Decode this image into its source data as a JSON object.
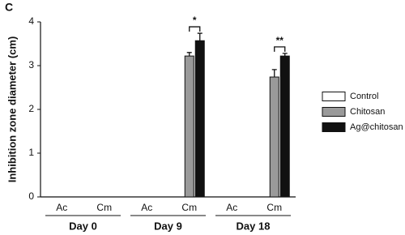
{
  "chart_data": {
    "type": "bar",
    "panel_label": "C",
    "y_label": "Inhibition zone diameter (cm)",
    "categories": [
      "Ac",
      "Cm",
      "Ac",
      "Cm",
      "Ac",
      "Cm"
    ],
    "groups": [
      "Day 0",
      "Day 9",
      "Day 18"
    ],
    "series": [
      {
        "name": "Control",
        "color": "#ffffff",
        "values": [
          null,
          null,
          null,
          null,
          null,
          null
        ],
        "errors": [
          null,
          null,
          null,
          null,
          null,
          null
        ]
      },
      {
        "name": "Chitosan",
        "color": "#9a9a9a",
        "values": [
          null,
          null,
          null,
          3.22,
          null,
          2.74
        ],
        "errors": [
          null,
          null,
          null,
          0.08,
          null,
          0.17
        ]
      },
      {
        "name": "Ag@chitosan",
        "color": "#111111",
        "values": [
          null,
          null,
          null,
          3.57,
          null,
          3.22
        ],
        "errors": [
          null,
          null,
          null,
          0.17,
          null,
          0.06
        ]
      }
    ],
    "significance": [
      null,
      null,
      null,
      "*",
      null,
      "**"
    ],
    "ylim": [
      0,
      4
    ],
    "yticks": [
      0,
      1,
      2,
      3,
      4
    ],
    "grid": false
  }
}
